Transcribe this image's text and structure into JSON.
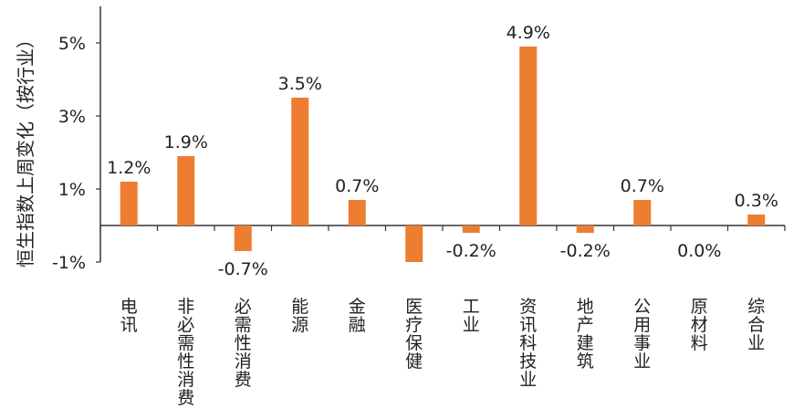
{
  "chart_data": {
    "type": "bar",
    "ylabel": "恒生指数上周变化（按行业）",
    "categories": [
      "电讯",
      "非必需性消费",
      "必需性消费",
      "能源",
      "金融",
      "医疗保健",
      "工业",
      "资讯科技业",
      "地产建筑",
      "公用事业",
      "原材料",
      "综合业"
    ],
    "values": [
      1.2,
      1.9,
      -0.7,
      3.5,
      0.7,
      -1.0,
      -0.2,
      4.9,
      -0.2,
      0.7,
      0.0,
      0.3
    ],
    "data_labels": [
      "1.2%",
      "1.9%",
      "-0.7%",
      "3.5%",
      "0.7%",
      "",
      "-0.2%",
      "4.9%",
      "-0.2%",
      "0.7%",
      "0.0%",
      "0.3%"
    ],
    "yticks": [
      -1,
      1,
      3,
      5
    ],
    "ytick_labels": [
      "-1%",
      "1%",
      "3%",
      "5%"
    ],
    "ylim": [
      -1.0,
      6.0
    ],
    "bar_color": "#ED7D31",
    "grid": false,
    "legend": "none"
  }
}
